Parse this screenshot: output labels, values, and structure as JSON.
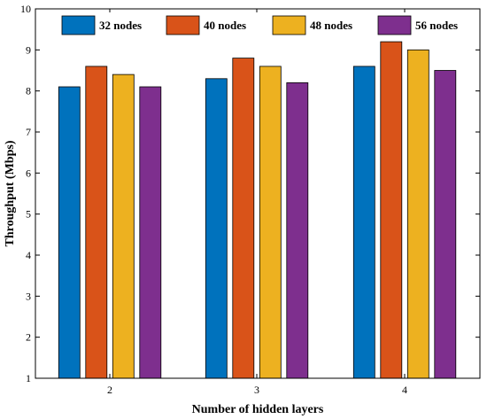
{
  "chart_data": {
    "type": "bar",
    "categories": [
      "2",
      "3",
      "4"
    ],
    "series": [
      {
        "name": "32 nodes",
        "color": "#0072BD",
        "values": [
          8.1,
          8.3,
          8.6
        ]
      },
      {
        "name": "40 nodes",
        "color": "#D95319",
        "values": [
          8.6,
          8.8,
          9.2
        ]
      },
      {
        "name": "48 nodes",
        "color": "#EDB120",
        "values": [
          8.4,
          8.6,
          9.0
        ]
      },
      {
        "name": "56 nodes",
        "color": "#7E2F8E",
        "values": [
          8.1,
          8.2,
          8.5
        ]
      }
    ],
    "xlabel": "Number of hidden layers",
    "ylabel": "Throughput (Mbps)",
    "ylim": [
      1,
      10
    ],
    "yticks": [
      "1",
      "2",
      "3",
      "4",
      "5",
      "6",
      "7",
      "8",
      "9",
      "10"
    ],
    "legend_position": "top",
    "grid": false
  }
}
